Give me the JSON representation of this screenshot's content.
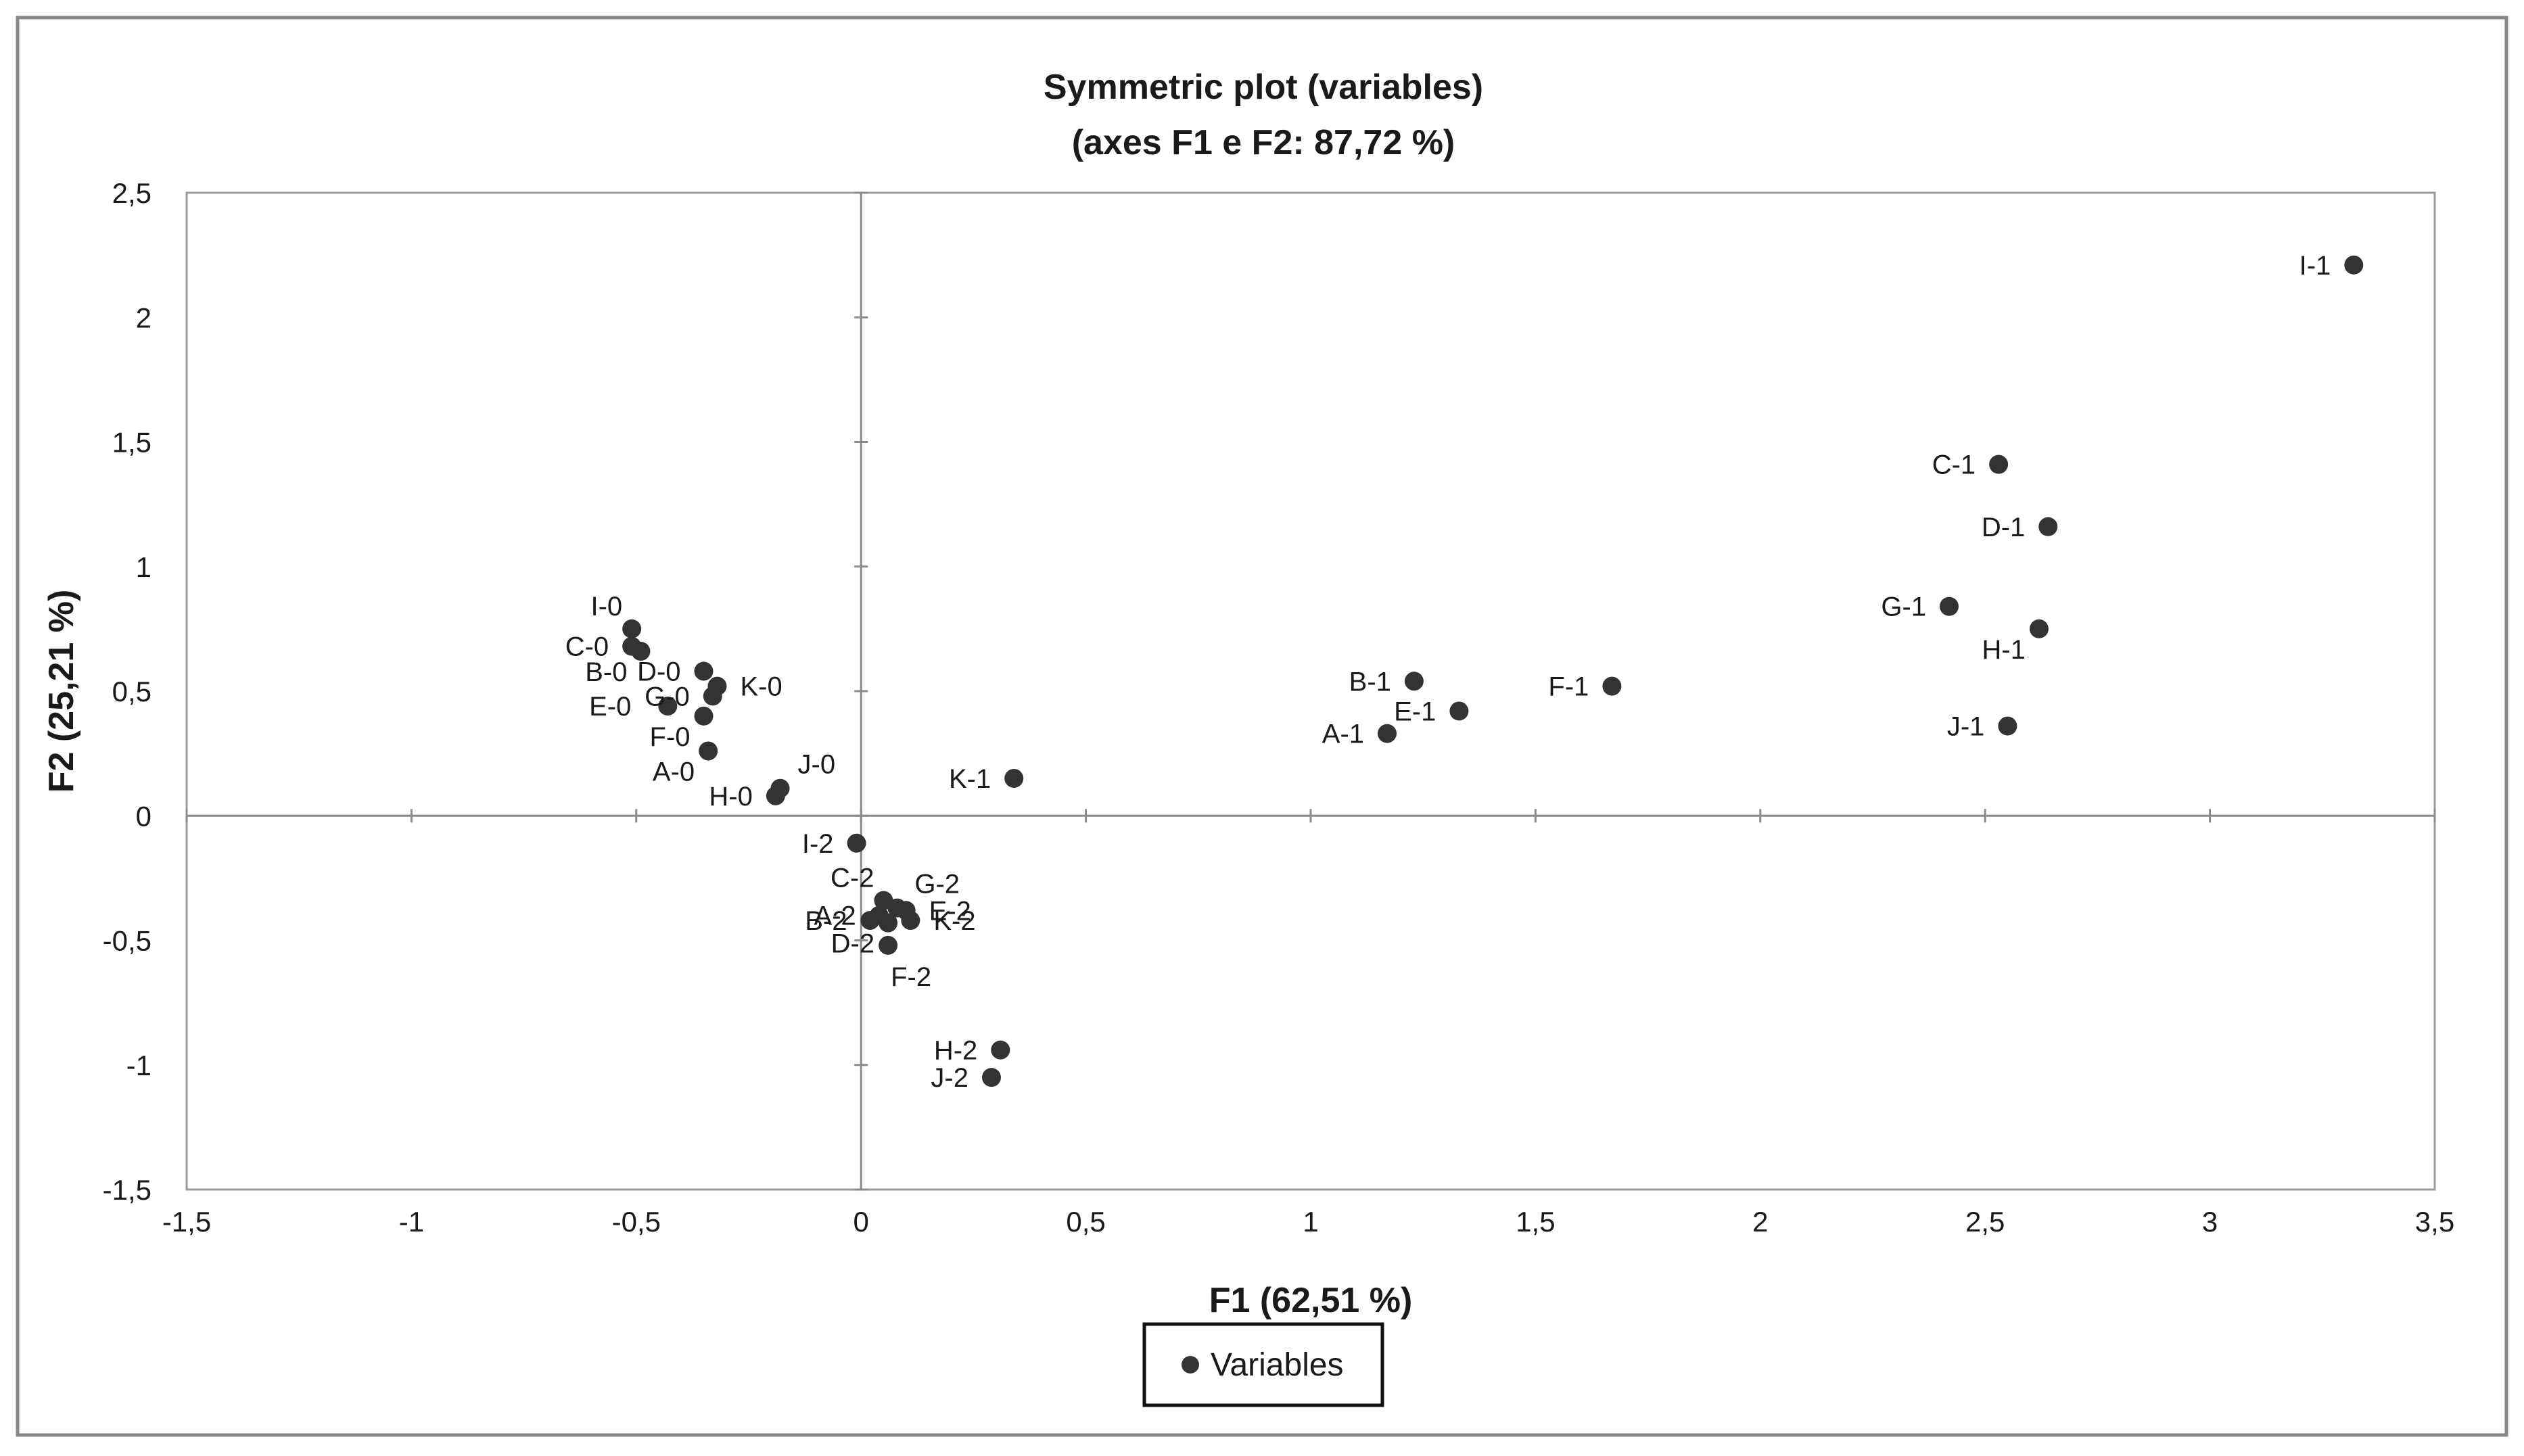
{
  "chart_data": {
    "type": "scatter",
    "title": "Symmetric plot (variables)",
    "subtitle": "(axes F1 e F2: 87,72 %)",
    "xlabel": "F1 (62,51 %)",
    "ylabel": "F2 (25,21 %)",
    "xlim": [
      -1.5,
      3.5
    ],
    "ylim": [
      -1.5,
      2.5
    ],
    "x_ticks": [
      -1.5,
      -1,
      -0.5,
      0,
      0.5,
      1,
      1.5,
      2,
      2.5,
      3,
      3.5
    ],
    "y_ticks": [
      -1.5,
      -1,
      -0.5,
      0,
      0.5,
      1,
      1.5,
      2,
      2.5
    ],
    "x_tick_labels": [
      "-1,5",
      "-1",
      "-0,5",
      "0",
      "0,5",
      "1",
      "1,5",
      "2",
      "2,5",
      "3",
      "3,5"
    ],
    "y_tick_labels": [
      "-1,5",
      "-1",
      "-0,5",
      "0",
      "0,5",
      "1",
      "1,5",
      "2",
      "2,5"
    ],
    "grid": false,
    "legend": {
      "position": "bottom",
      "entries": [
        "Variables"
      ]
    },
    "series": [
      {
        "name": "Variables",
        "color": "#333333",
        "points": [
          {
            "label": "I-1",
            "x": 3.32,
            "y": 2.21,
            "label_side": "left"
          },
          {
            "label": "C-1",
            "x": 2.53,
            "y": 1.41,
            "label_side": "left"
          },
          {
            "label": "D-1",
            "x": 2.64,
            "y": 1.16,
            "label_side": "left"
          },
          {
            "label": "G-1",
            "x": 2.42,
            "y": 0.84,
            "label_side": "left"
          },
          {
            "label": "H-1",
            "x": 2.62,
            "y": 0.75,
            "label_side": "left-below"
          },
          {
            "label": "J-1",
            "x": 2.55,
            "y": 0.36,
            "label_side": "left"
          },
          {
            "label": "B-1",
            "x": 1.23,
            "y": 0.54,
            "label_side": "left"
          },
          {
            "label": "F-1",
            "x": 1.67,
            "y": 0.52,
            "label_side": "left"
          },
          {
            "label": "E-1",
            "x": 1.33,
            "y": 0.42,
            "label_side": "left"
          },
          {
            "label": "A-1",
            "x": 1.17,
            "y": 0.33,
            "label_side": "left"
          },
          {
            "label": "K-1",
            "x": 0.34,
            "y": 0.15,
            "label_side": "left"
          },
          {
            "label": "I-0",
            "x": -0.51,
            "y": 0.75,
            "label_side": "left-above"
          },
          {
            "label": "C-0",
            "x": -0.51,
            "y": 0.68,
            "label_side": "left"
          },
          {
            "label": "B-0",
            "x": -0.49,
            "y": 0.66,
            "label_side": "left-below"
          },
          {
            "label": "D-0",
            "x": -0.35,
            "y": 0.58,
            "label_side": "left"
          },
          {
            "label": "K-0",
            "x": -0.32,
            "y": 0.52,
            "label_side": "right"
          },
          {
            "label": "G-0",
            "x": -0.33,
            "y": 0.48,
            "label_side": "left"
          },
          {
            "label": "E-0",
            "x": -0.43,
            "y": 0.44,
            "label_side": "left-far"
          },
          {
            "label": "F-0",
            "x": -0.35,
            "y": 0.4,
            "label_side": "left-below"
          },
          {
            "label": "A-0",
            "x": -0.34,
            "y": 0.26,
            "label_side": "left-below"
          },
          {
            "label": "J-0",
            "x": -0.18,
            "y": 0.11,
            "label_side": "right-above"
          },
          {
            "label": "H-0",
            "x": -0.19,
            "y": 0.08,
            "label_side": "left"
          },
          {
            "label": "I-2",
            "x": -0.01,
            "y": -0.11,
            "label_side": "left"
          },
          {
            "label": "C-2",
            "x": 0.05,
            "y": -0.34,
            "label_side": "left-above"
          },
          {
            "label": "G-2",
            "x": 0.08,
            "y": -0.37,
            "label_side": "right-above"
          },
          {
            "label": "A-2",
            "x": 0.04,
            "y": -0.4,
            "label_side": "left"
          },
          {
            "label": "E-2",
            "x": 0.1,
            "y": -0.38,
            "label_side": "right"
          },
          {
            "label": "B-2",
            "x": 0.02,
            "y": -0.42,
            "label_side": "left"
          },
          {
            "label": "K-2",
            "x": 0.11,
            "y": -0.42,
            "label_side": "right"
          },
          {
            "label": "D-2",
            "x": 0.06,
            "y": -0.43,
            "label_side": "left-below"
          },
          {
            "label": "F-2",
            "x": 0.06,
            "y": -0.52,
            "label_side": "below"
          },
          {
            "label": "H-2",
            "x": 0.31,
            "y": -0.94,
            "label_side": "left"
          },
          {
            "label": "J-2",
            "x": 0.29,
            "y": -1.05,
            "label_side": "left"
          }
        ]
      }
    ]
  }
}
